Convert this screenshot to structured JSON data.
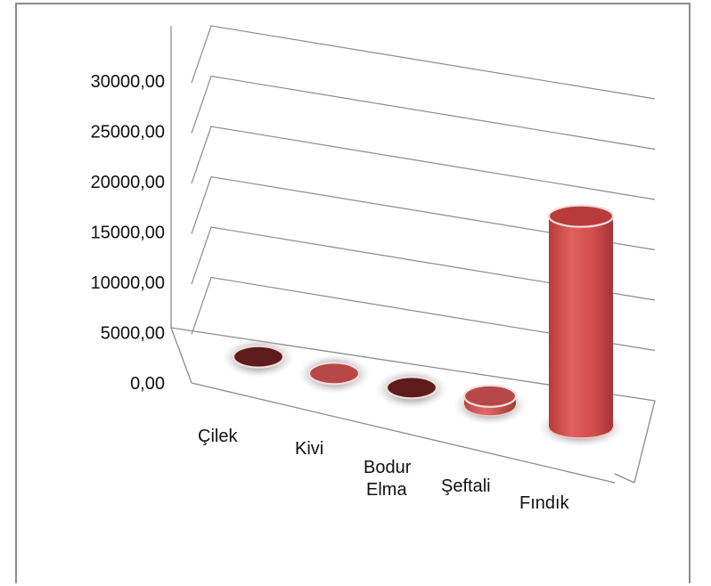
{
  "chart_data": {
    "type": "bar",
    "style": "3d-cylinder",
    "categories": [
      "Çilek",
      "Kivi",
      "Bodur Elma",
      "Şeftali",
      "Fındık"
    ],
    "values": [
      120,
      60,
      150,
      900,
      21000
    ],
    "ylim": [
      0,
      30000
    ],
    "yticks": [
      "0,00",
      "5000,00",
      "10000,00",
      "15000,00",
      "20000,00",
      "25000,00",
      "30000,00"
    ],
    "grid": true,
    "legend": "none",
    "colors": {
      "dark": "#5e1c1c",
      "medium": "#b84a4a",
      "bright": "#d45050",
      "grid": "#8c8c8c"
    },
    "bar_colors": [
      "dark",
      "medium",
      "dark",
      "medium",
      "bright"
    ]
  }
}
